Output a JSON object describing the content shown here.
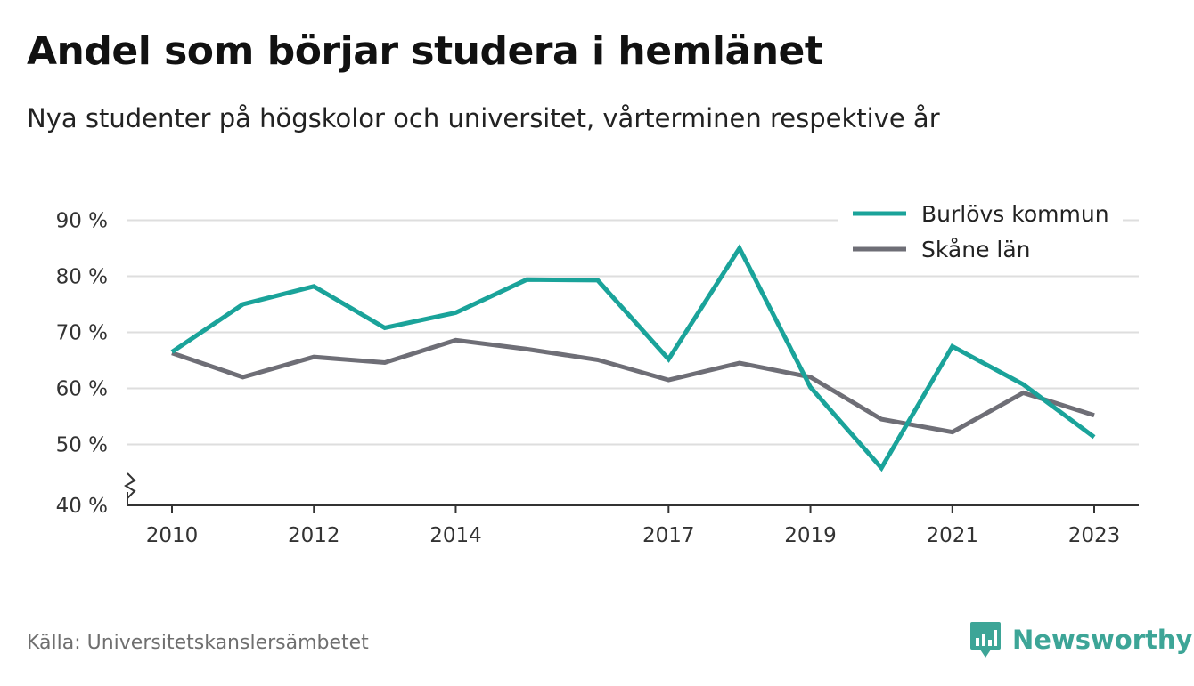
{
  "title": "Andel som börjar studera i hemlänet",
  "subtitle": "Nya studenter på högskolor och universitet, vårterminen respektive år",
  "source": "Källa: Universitetskanslersämbetet",
  "brand": {
    "name": "Newsworthy",
    "color": "#3da597",
    "icon": "newsworthy-logo-icon"
  },
  "chart_data": {
    "type": "line",
    "x": [
      2010,
      2011,
      2012,
      2013,
      2014,
      2015,
      2016,
      2017,
      2018,
      2019,
      2020,
      2021,
      2022,
      2023
    ],
    "x_tick_labels": [
      "2010",
      "2012",
      "2014",
      "2017",
      "2019",
      "2021",
      "2023"
    ],
    "y_ticks": [
      40,
      50,
      60,
      70,
      80,
      90
    ],
    "y_tick_labels": [
      "40 %",
      "50 %",
      "60 %",
      "70 %",
      "80 %",
      "90 %"
    ],
    "ylim": [
      40,
      92
    ],
    "y_axis_break": true,
    "grid": true,
    "legend_position": "top-right",
    "series": [
      {
        "name": "Burlövs kommun",
        "color": "#1aa39a",
        "values": [
          66.5,
          75.0,
          78.2,
          70.8,
          73.5,
          79.4,
          79.3,
          65.2,
          85.0,
          60.2,
          45.8,
          67.5,
          60.7,
          51.3
        ]
      },
      {
        "name": "Skåne län",
        "color": "#6e6e76",
        "values": [
          66.3,
          62.0,
          65.6,
          64.6,
          68.6,
          67.0,
          65.1,
          61.5,
          64.5,
          62.0,
          54.5,
          52.2,
          59.2,
          55.2
        ]
      }
    ]
  }
}
